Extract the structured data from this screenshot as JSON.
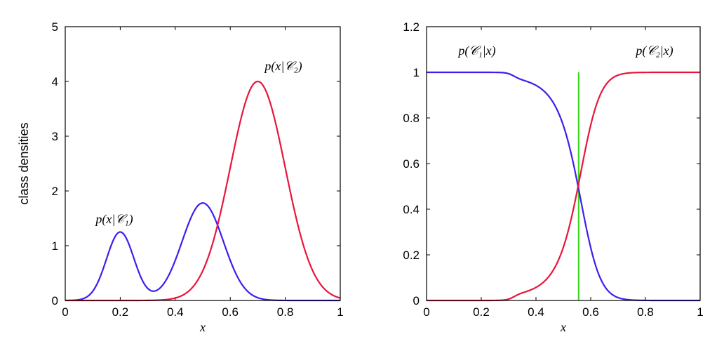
{
  "colors": {
    "class1": "#3a1ff0",
    "class2": "#e8163c",
    "boundary": "#3ad81e"
  },
  "chart_data": [
    {
      "type": "line",
      "title": "",
      "xlabel": "x",
      "ylabel": "class densities",
      "xlim": [
        0,
        1
      ],
      "ylim": [
        0,
        5
      ],
      "xticks": [
        "0",
        "0.2",
        "0.4",
        "0.6",
        "0.8",
        "1"
      ],
      "yticks": [
        "0",
        "1",
        "2",
        "3",
        "4",
        "5"
      ],
      "series": [
        {
          "name": "p(x|C1)",
          "label_math": "p(x|𝒞₁)",
          "components": [
            {
              "mean": 0.2,
              "sd": 0.05,
              "peak": 1.25
            },
            {
              "mean": 0.5,
              "sd": 0.075,
              "peak": 1.78
            }
          ]
        },
        {
          "name": "p(x|C2)",
          "label_math": "p(x|𝒞₂)",
          "components": [
            {
              "mean": 0.7,
              "sd": 0.1,
              "peak": 4.0
            }
          ]
        }
      ]
    },
    {
      "type": "line",
      "title": "",
      "xlabel": "x",
      "ylabel": "",
      "xlim": [
        0,
        1
      ],
      "ylim": [
        0,
        1.2
      ],
      "xticks": [
        "0",
        "0.2",
        "0.4",
        "0.6",
        "0.8",
        "1"
      ],
      "yticks": [
        "0",
        "0.2",
        "0.4",
        "0.6",
        "0.8",
        "1",
        "1.2"
      ],
      "series": [
        {
          "name": "p(C1|x)",
          "label_math": "p(𝒞₁|x)",
          "derived_from": "posterior of class 1"
        },
        {
          "name": "p(C2|x)",
          "label_math": "p(𝒞₂|x)",
          "derived_from": "posterior of class 2"
        }
      ],
      "decision_boundary": {
        "x": 0.556,
        "y_range": [
          0,
          1.0
        ]
      }
    }
  ]
}
